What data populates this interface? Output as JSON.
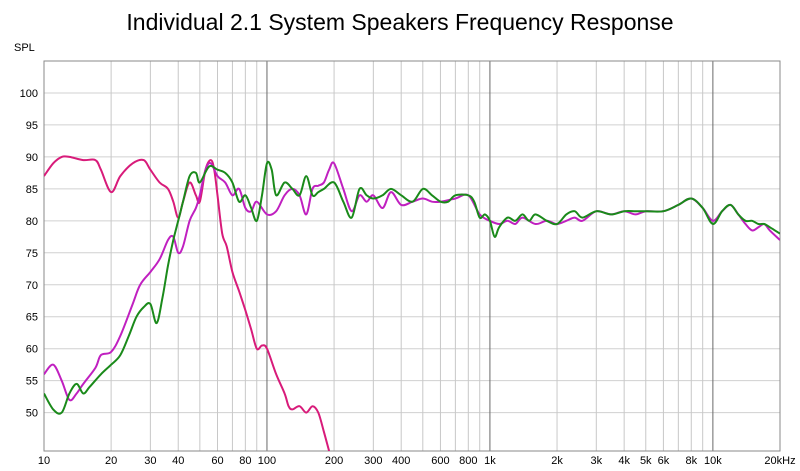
{
  "chart_data": {
    "type": "line",
    "title": "Individual 2.1 System Speakers Frequency Response",
    "ylabel": "SPL",
    "xlabel": "",
    "x_scale": "log",
    "xlim": [
      10,
      20000
    ],
    "ylim": [
      44,
      105
    ],
    "y_ticks": [
      50,
      55,
      60,
      65,
      70,
      75,
      80,
      85,
      90,
      95,
      100
    ],
    "x_ticks": [
      {
        "value": 10,
        "label": "10"
      },
      {
        "value": 20,
        "label": "20"
      },
      {
        "value": 30,
        "label": "30"
      },
      {
        "value": 40,
        "label": "40"
      },
      {
        "value": 60,
        "label": "60"
      },
      {
        "value": 80,
        "label": "80"
      },
      {
        "value": 100,
        "label": "100"
      },
      {
        "value": 200,
        "label": "200"
      },
      {
        "value": 300,
        "label": "300"
      },
      {
        "value": 400,
        "label": "400"
      },
      {
        "value": 600,
        "label": "600"
      },
      {
        "value": 800,
        "label": "800"
      },
      {
        "value": 1000,
        "label": "1k"
      },
      {
        "value": 2000,
        "label": "2k"
      },
      {
        "value": 3000,
        "label": "3k"
      },
      {
        "value": 4000,
        "label": "4k"
      },
      {
        "value": 5000,
        "label": "5k"
      },
      {
        "value": 6000,
        "label": "6k"
      },
      {
        "value": 8000,
        "label": "8k"
      },
      {
        "value": 10000,
        "label": "10k"
      },
      {
        "value": 20000,
        "label": "20kHz"
      }
    ],
    "grid": true,
    "series": [
      {
        "color": "#d81b7a",
        "points": [
          [
            10,
            87
          ],
          [
            11,
            89
          ],
          [
            12,
            90
          ],
          [
            13,
            90
          ],
          [
            15,
            89.5
          ],
          [
            17,
            89.5
          ],
          [
            18,
            88
          ],
          [
            20,
            84.5
          ],
          [
            22,
            87
          ],
          [
            25,
            89
          ],
          [
            28,
            89.5
          ],
          [
            30,
            88
          ],
          [
            33,
            86
          ],
          [
            36,
            85
          ],
          [
            38,
            83
          ],
          [
            40,
            80.5
          ],
          [
            42,
            83
          ],
          [
            45,
            86
          ],
          [
            48,
            84
          ],
          [
            50,
            83
          ],
          [
            53,
            88
          ],
          [
            56,
            89.5
          ],
          [
            58,
            88
          ],
          [
            60,
            84
          ],
          [
            63,
            78
          ],
          [
            66,
            76
          ],
          [
            70,
            72
          ],
          [
            75,
            69
          ],
          [
            80,
            66
          ],
          [
            85,
            63
          ],
          [
            90,
            60
          ],
          [
            95,
            60.5
          ],
          [
            100,
            60
          ],
          [
            110,
            56
          ],
          [
            120,
            53
          ],
          [
            125,
            51
          ],
          [
            130,
            50.5
          ],
          [
            140,
            51
          ],
          [
            150,
            50
          ],
          [
            160,
            51
          ],
          [
            170,
            50
          ],
          [
            180,
            47
          ],
          [
            190,
            44
          ]
        ]
      },
      {
        "color": "#c020c0",
        "points": [
          [
            10,
            56
          ],
          [
            11,
            57.5
          ],
          [
            12,
            55
          ],
          [
            13,
            52
          ],
          [
            14,
            53
          ],
          [
            15,
            54.5
          ],
          [
            17,
            57
          ],
          [
            18,
            59
          ],
          [
            20,
            59.5
          ],
          [
            22,
            62
          ],
          [
            25,
            67
          ],
          [
            27,
            70
          ],
          [
            30,
            72
          ],
          [
            33,
            74
          ],
          [
            36,
            77
          ],
          [
            38,
            77.5
          ],
          [
            40,
            75
          ],
          [
            42,
            76
          ],
          [
            45,
            80
          ],
          [
            48,
            82
          ],
          [
            50,
            84
          ],
          [
            53,
            88
          ],
          [
            56,
            89
          ],
          [
            60,
            87
          ],
          [
            65,
            86
          ],
          [
            70,
            84
          ],
          [
            75,
            85
          ],
          [
            80,
            82
          ],
          [
            85,
            81.5
          ],
          [
            90,
            83
          ],
          [
            100,
            81
          ],
          [
            110,
            81.5
          ],
          [
            120,
            84
          ],
          [
            130,
            85
          ],
          [
            140,
            84
          ],
          [
            150,
            81
          ],
          [
            160,
            85
          ],
          [
            170,
            85.5
          ],
          [
            180,
            86
          ],
          [
            190,
            88
          ],
          [
            200,
            89
          ],
          [
            220,
            85
          ],
          [
            240,
            81.5
          ],
          [
            260,
            84
          ],
          [
            280,
            83
          ],
          [
            300,
            84
          ],
          [
            330,
            82
          ],
          [
            360,
            84.5
          ],
          [
            400,
            82.5
          ],
          [
            450,
            83
          ],
          [
            500,
            83.5
          ],
          [
            550,
            83
          ],
          [
            600,
            83
          ],
          [
            700,
            83.5
          ],
          [
            800,
            84
          ],
          [
            900,
            81
          ],
          [
            1000,
            80
          ],
          [
            1100,
            79.5
          ],
          [
            1200,
            80
          ],
          [
            1300,
            79.5
          ],
          [
            1400,
            80.5
          ],
          [
            1600,
            79.5
          ],
          [
            1800,
            80
          ],
          [
            2000,
            79.5
          ],
          [
            2200,
            80
          ],
          [
            2400,
            80.5
          ],
          [
            2600,
            80
          ],
          [
            3000,
            81.5
          ],
          [
            3500,
            81
          ],
          [
            4000,
            81.5
          ],
          [
            4500,
            81
          ],
          [
            5000,
            81.5
          ],
          [
            6000,
            81.5
          ],
          [
            7000,
            82.5
          ],
          [
            8000,
            83.5
          ],
          [
            9000,
            82
          ],
          [
            10000,
            80
          ],
          [
            11000,
            81.5
          ],
          [
            12000,
            82.5
          ],
          [
            13000,
            81
          ],
          [
            14000,
            79.5
          ],
          [
            15000,
            78.5
          ],
          [
            16000,
            79
          ],
          [
            17000,
            79.5
          ],
          [
            18000,
            78.5
          ],
          [
            20000,
            77
          ]
        ]
      },
      {
        "color": "#1a8a1a",
        "points": [
          [
            10,
            53
          ],
          [
            11,
            50.5
          ],
          [
            12,
            50
          ],
          [
            13,
            53
          ],
          [
            14,
            54.5
          ],
          [
            15,
            53
          ],
          [
            16,
            54
          ],
          [
            18,
            56
          ],
          [
            20,
            57.5
          ],
          [
            22,
            59
          ],
          [
            24,
            62
          ],
          [
            26,
            65
          ],
          [
            28,
            66.5
          ],
          [
            30,
            67
          ],
          [
            32,
            64
          ],
          [
            34,
            68
          ],
          [
            36,
            73
          ],
          [
            38,
            77
          ],
          [
            40,
            80
          ],
          [
            42,
            83
          ],
          [
            45,
            87
          ],
          [
            48,
            87.5
          ],
          [
            50,
            86
          ],
          [
            55,
            88.5
          ],
          [
            60,
            88
          ],
          [
            65,
            87.5
          ],
          [
            70,
            86
          ],
          [
            75,
            83
          ],
          [
            80,
            84
          ],
          [
            85,
            82
          ],
          [
            90,
            80
          ],
          [
            95,
            84
          ],
          [
            100,
            89
          ],
          [
            105,
            88
          ],
          [
            110,
            84
          ],
          [
            120,
            86
          ],
          [
            130,
            85
          ],
          [
            140,
            84
          ],
          [
            150,
            87
          ],
          [
            160,
            84
          ],
          [
            170,
            84.5
          ],
          [
            180,
            85
          ],
          [
            200,
            86
          ],
          [
            220,
            83
          ],
          [
            240,
            80.5
          ],
          [
            260,
            85
          ],
          [
            280,
            84
          ],
          [
            300,
            83.5
          ],
          [
            330,
            84
          ],
          [
            360,
            85
          ],
          [
            400,
            84
          ],
          [
            450,
            83
          ],
          [
            500,
            85
          ],
          [
            550,
            84
          ],
          [
            600,
            83
          ],
          [
            650,
            83
          ],
          [
            700,
            84
          ],
          [
            800,
            84
          ],
          [
            850,
            83
          ],
          [
            900,
            80.5
          ],
          [
            950,
            81
          ],
          [
            1000,
            80
          ],
          [
            1050,
            77.5
          ],
          [
            1100,
            79
          ],
          [
            1200,
            80.5
          ],
          [
            1300,
            80
          ],
          [
            1400,
            81
          ],
          [
            1500,
            80
          ],
          [
            1600,
            81
          ],
          [
            1800,
            80
          ],
          [
            2000,
            79.5
          ],
          [
            2200,
            81
          ],
          [
            2400,
            81.5
          ],
          [
            2600,
            80.5
          ],
          [
            3000,
            81.5
          ],
          [
            3500,
            81
          ],
          [
            4000,
            81.5
          ],
          [
            4500,
            81.5
          ],
          [
            5000,
            81.5
          ],
          [
            6000,
            81.5
          ],
          [
            7000,
            82.5
          ],
          [
            8000,
            83.5
          ],
          [
            9000,
            82
          ],
          [
            10000,
            79.5
          ],
          [
            11000,
            81.5
          ],
          [
            12000,
            82.5
          ],
          [
            13000,
            81
          ],
          [
            14000,
            80
          ],
          [
            15000,
            80
          ],
          [
            16000,
            79.5
          ],
          [
            17000,
            79.5
          ],
          [
            18000,
            79
          ],
          [
            20000,
            78
          ]
        ]
      }
    ]
  }
}
